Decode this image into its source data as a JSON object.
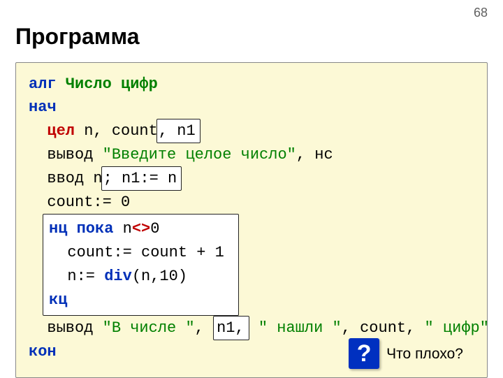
{
  "pageNumber": "68",
  "title": "Программа",
  "code": {
    "alg": "алг",
    "progName": "Число цифр",
    "nach": "нач",
    "declare": "цел",
    "declVars": "n, count",
    "declExtra": ", n1",
    "vyvod": "вывод",
    "outStr1": "\"Введите целое число\"",
    "afterOutStr1": ", нс",
    "vvod": "ввод",
    "inputVar": "n",
    "inputExtra": "; n1:= n",
    "countInit": "count:= 0",
    "ntsPoka": "нц пока",
    "loopCondLeft": " n",
    "loopOp": "<>",
    "loopCondRight": "0",
    "countIncr": "count:= count + 1",
    "nAssign": "n:= ",
    "divKw": "div",
    "divArgs": "(n,10)",
    "kts": "кц",
    "outStr2": "\"В числе \"",
    "outN1": "n1,",
    "outStr3": "\" нашли \"",
    "afterN1": ", count, ",
    "outStr4": "\" цифр\"",
    "kon": "кон"
  },
  "question": {
    "mark": "?",
    "text": "Что плохо?"
  },
  "colors": {
    "background": "#ffffff",
    "codeBg": "#fcf9d6",
    "keyword": "#0030b8",
    "declare": "#c00000",
    "green": "#008000",
    "badge": "#0030c0",
    "pagenum": "#606060"
  }
}
